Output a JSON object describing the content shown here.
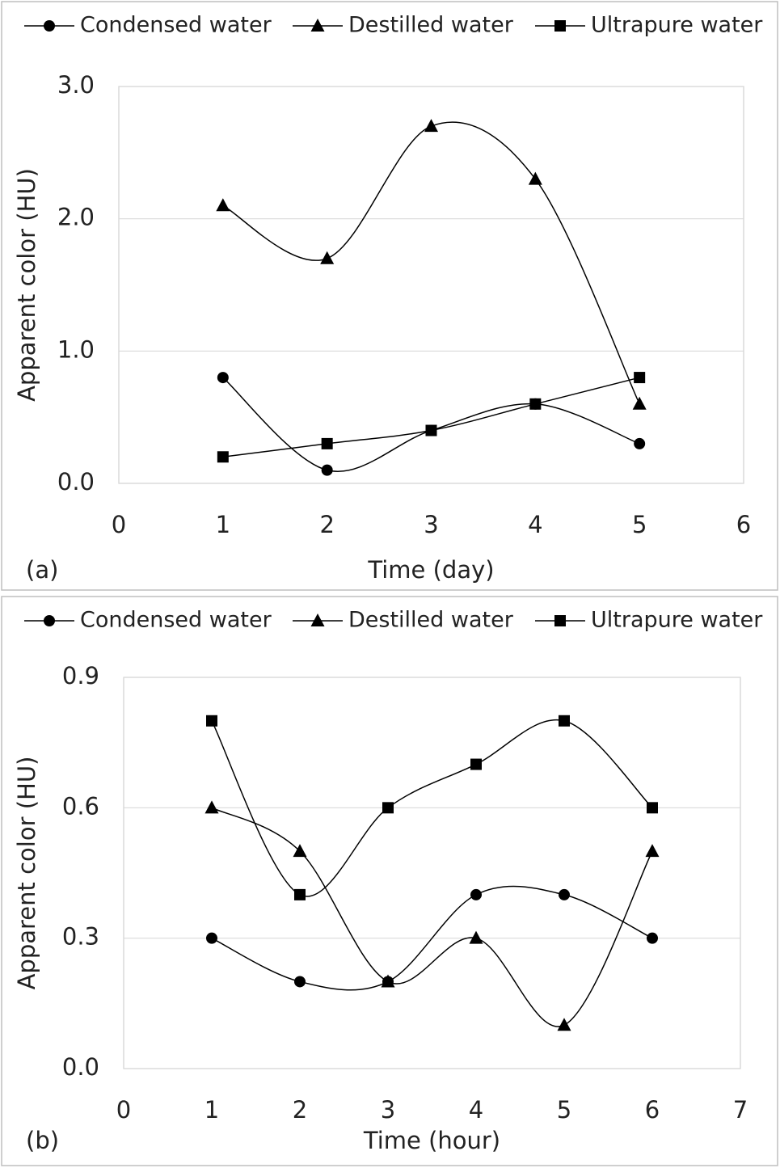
{
  "chart_data": [
    {
      "type": "line",
      "panel_label": "(a)",
      "x_label": "Time (day)",
      "y_label": "Apparent color (HU)",
      "x": [
        1,
        2,
        3,
        4,
        5
      ],
      "xlim": [
        0,
        6
      ],
      "xticks": [
        0,
        1,
        2,
        3,
        4,
        5,
        6
      ],
      "ylim": [
        0,
        3
      ],
      "yticks": [
        {
          "value": 0,
          "label": "0.0"
        },
        {
          "value": 1,
          "label": "1.0"
        },
        {
          "value": 2,
          "label": "2.0"
        },
        {
          "value": 3,
          "label": "3.0"
        }
      ],
      "grid": true,
      "smooth": true,
      "series": [
        {
          "name": "Condensed water",
          "color": "#000000",
          "marker": "circle",
          "values": [
            0.8,
            0.1,
            0.4,
            0.6,
            0.3
          ]
        },
        {
          "name": "Destilled water",
          "color": "#000000",
          "marker": "triangle",
          "values": [
            2.1,
            1.7,
            2.7,
            2.3,
            0.6
          ]
        },
        {
          "name": "Ultrapure water",
          "color": "#000000",
          "marker": "square",
          "values": [
            0.2,
            0.3,
            0.4,
            0.6,
            0.8
          ]
        }
      ]
    },
    {
      "type": "line",
      "panel_label": "(b)",
      "x_label": "Time (hour)",
      "y_label": "Apparent color (HU)",
      "x": [
        1,
        2,
        3,
        4,
        5,
        6
      ],
      "xlim": [
        0,
        7
      ],
      "xticks": [
        0,
        1,
        2,
        3,
        4,
        5,
        6,
        7
      ],
      "ylim": [
        0,
        0.9
      ],
      "yticks": [
        {
          "value": 0,
          "label": "0.0"
        },
        0.3,
        0.6,
        0.9
      ],
      "grid": true,
      "smooth": true,
      "series": [
        {
          "name": "Condensed water",
          "color": "#000000",
          "marker": "circle",
          "values": [
            0.3,
            0.2,
            0.2,
            0.4,
            0.4,
            0.3
          ]
        },
        {
          "name": "Destilled water",
          "color": "#000000",
          "marker": "triangle",
          "values": [
            0.6,
            0.5,
            0.2,
            0.3,
            0.1,
            0.5
          ]
        },
        {
          "name": "Ultrapure water",
          "color": "#000000",
          "marker": "square",
          "values": [
            0.8,
            0.4,
            0.6,
            0.7,
            0.8,
            0.6
          ]
        }
      ]
    }
  ]
}
